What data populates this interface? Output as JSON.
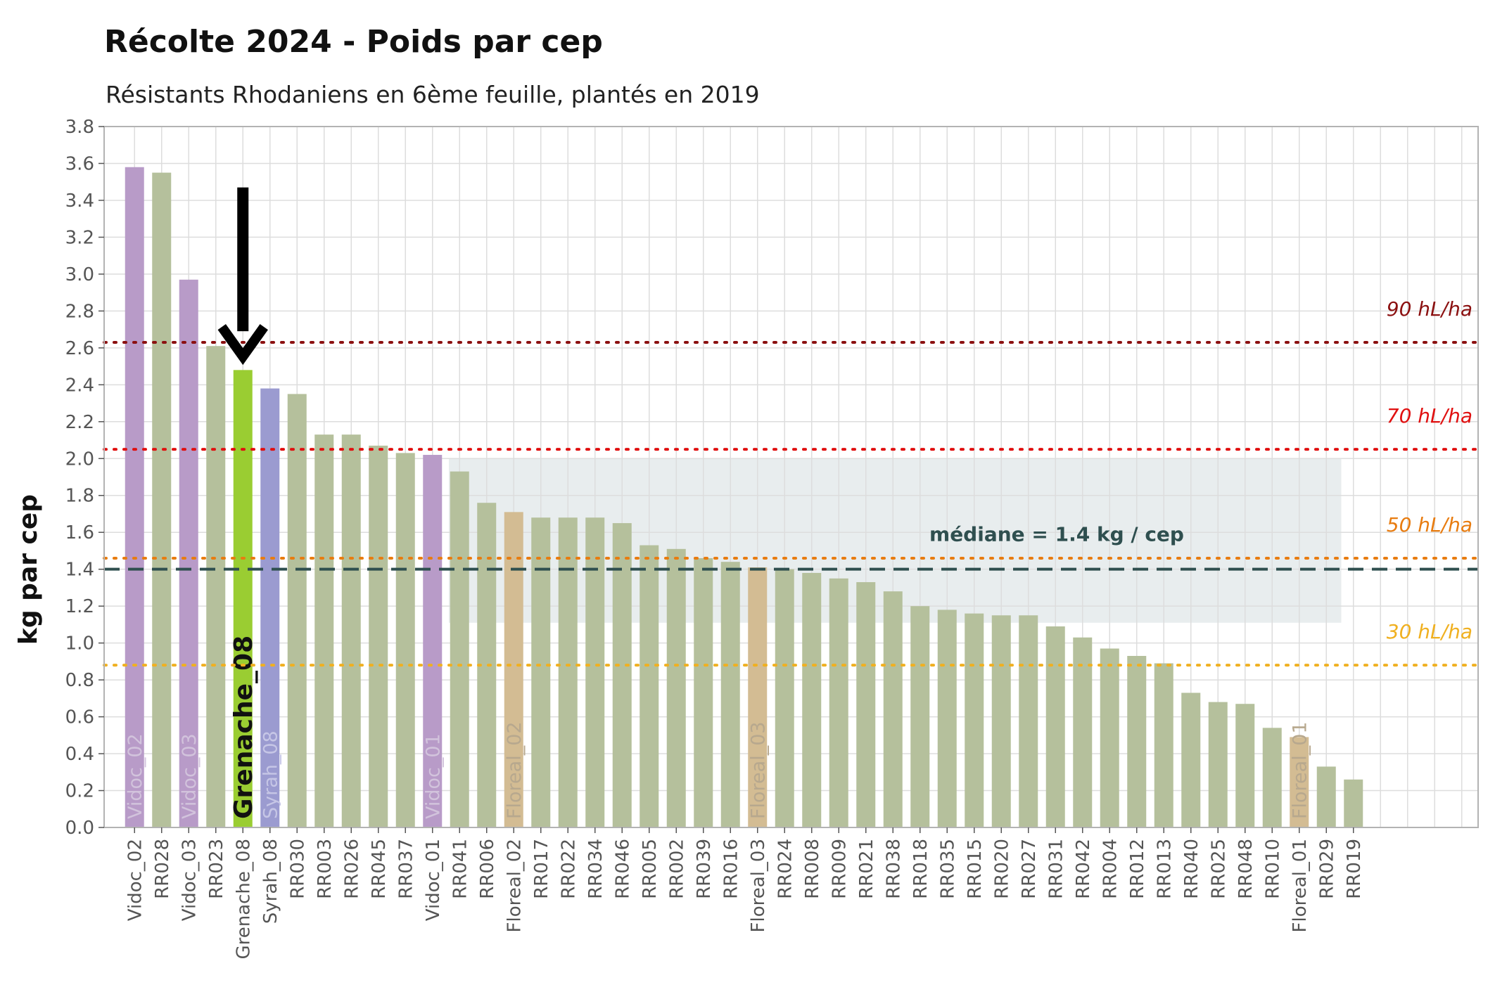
{
  "chart_data": {
    "type": "bar",
    "title": "Récolte 2024 - Poids par cep",
    "subtitle": "Résistants Rhodaniens en 6ème feuille, plantés en 2019",
    "xlabel": "",
    "ylabel": "kg par cep",
    "ylim": [
      0,
      3.8
    ],
    "yticks": [
      "0.0",
      "0.2",
      "0.4",
      "0.6",
      "0.8",
      "1.0",
      "1.2",
      "1.4",
      "1.6",
      "1.8",
      "2.0",
      "2.2",
      "2.4",
      "2.6",
      "2.8",
      "3.0",
      "3.2",
      "3.4",
      "3.6",
      "3.8"
    ],
    "grid": true,
    "categories": [
      "Vidoc_02",
      "RR028",
      "Vidoc_03",
      "RR023",
      "Grenache_08",
      "Syrah_08",
      "RR030",
      "RR003",
      "RR026",
      "RR045",
      "RR037",
      "Vidoc_01",
      "RR041",
      "RR006",
      "Floreal_02",
      "RR017",
      "RR022",
      "RR034",
      "RR046",
      "RR005",
      "RR002",
      "RR039",
      "RR016",
      "Floreal_03",
      "RR024",
      "RR008",
      "RR009",
      "RR021",
      "RR038",
      "RR018",
      "RR035",
      "RR015",
      "RR020",
      "RR027",
      "RR031",
      "RR042",
      "RR004",
      "RR012",
      "RR013",
      "RR040",
      "RR025",
      "RR048",
      "RR010",
      "Floreal_01",
      "RR029",
      "RR019"
    ],
    "values": [
      3.58,
      3.55,
      2.97,
      2.61,
      2.48,
      2.38,
      2.35,
      2.13,
      2.13,
      2.07,
      2.03,
      2.02,
      1.93,
      1.76,
      1.71,
      1.68,
      1.68,
      1.68,
      1.65,
      1.53,
      1.51,
      1.46,
      1.44,
      1.41,
      1.4,
      1.38,
      1.35,
      1.33,
      1.28,
      1.2,
      1.18,
      1.16,
      1.15,
      1.15,
      1.09,
      1.03,
      0.97,
      0.93,
      0.89,
      0.73,
      0.68,
      0.67,
      0.54,
      0.49,
      0.33,
      0.26
    ],
    "bar_colors": [
      "#b89bc8",
      "#b5c09c",
      "#b89bc8",
      "#b5c09c",
      "#9acd32",
      "#9b9bd0",
      "#b5c09c",
      "#b5c09c",
      "#b5c09c",
      "#b5c09c",
      "#b5c09c",
      "#b89bc8",
      "#b5c09c",
      "#b5c09c",
      "#d3bc93",
      "#b5c09c",
      "#b5c09c",
      "#b5c09c",
      "#b5c09c",
      "#b5c09c",
      "#b5c09c",
      "#b5c09c",
      "#b5c09c",
      "#d3bc93",
      "#b5c09c",
      "#b5c09c",
      "#b5c09c",
      "#b5c09c",
      "#b5c09c",
      "#b5c09c",
      "#b5c09c",
      "#b5c09c",
      "#b5c09c",
      "#b5c09c",
      "#b5c09c",
      "#b5c09c",
      "#b5c09c",
      "#b5c09c",
      "#b5c09c",
      "#b5c09c",
      "#b5c09c",
      "#b5c09c",
      "#b5c09c",
      "#d3bc93",
      "#b5c09c",
      "#b5c09c"
    ],
    "in_bar_labels": [
      {
        "index": 0,
        "text": "Vidoc_02",
        "color": "#d2c3dc",
        "bold": false
      },
      {
        "index": 2,
        "text": "Vidoc_03",
        "color": "#d2c3dc",
        "bold": false
      },
      {
        "index": 4,
        "text": "Grenache_08",
        "color": "#111111",
        "bold": true
      },
      {
        "index": 5,
        "text": "Syrah_08",
        "color": "#c6c6e6",
        "bold": false
      },
      {
        "index": 11,
        "text": "Vidoc_01",
        "color": "#d2c3dc",
        "bold": false
      },
      {
        "index": 14,
        "text": "Floreal_02",
        "color": "#b7a88e",
        "bold": false
      },
      {
        "index": 23,
        "text": "Floreal_03",
        "color": "#b7a88e",
        "bold": false
      },
      {
        "index": 43,
        "text": "Floreal_01",
        "color": "#b7a88e",
        "bold": false
      }
    ],
    "reference_lines": [
      {
        "value": 2.63,
        "label": "90 hL/ha",
        "color": "#8b1010"
      },
      {
        "value": 2.05,
        "label": "70 hL/ha",
        "color": "#e01010"
      },
      {
        "value": 1.46,
        "label": "50 hL/ha",
        "color": "#e87c10"
      },
      {
        "value": 0.88,
        "label": "30 hL/ha",
        "color": "#f0b020"
      }
    ],
    "median": {
      "value": 1.4,
      "label": "médiane = 1.4 kg / cep",
      "color": "#2f4f4f"
    },
    "band": {
      "from_index": 12,
      "to_index": 45,
      "ymin": 1.11,
      "ymax": 2.0,
      "color": "#e8edee"
    },
    "arrow": {
      "target_index": 4,
      "from_value": 3.47,
      "to_value": 2.5,
      "color": "#000000"
    },
    "colors": {
      "grid": "#dddddd",
      "panel_border": "#b3b3b3",
      "tick_text": "#555555",
      "title": "#111111"
    }
  }
}
